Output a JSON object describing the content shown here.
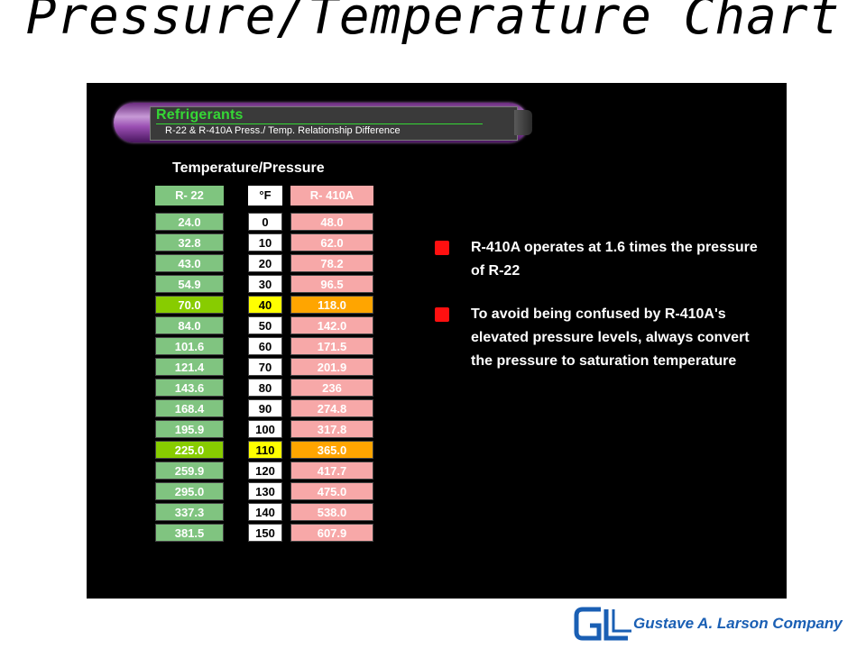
{
  "slide": {
    "title": "Pressure/Temperature Chart"
  },
  "banner": {
    "title": "Refrigerants",
    "subtitle": "R-22 & R-410A Press./ Temp. Relationship Difference"
  },
  "table": {
    "heading": "Temperature/Pressure",
    "headers": {
      "r22": "R- 22",
      "f": "°F",
      "r410a": "R- 410A"
    },
    "rows": [
      {
        "r22": "24.0",
        "f": "0",
        "r410a": "48.0",
        "highlight": false
      },
      {
        "r22": "32.8",
        "f": "10",
        "r410a": "62.0",
        "highlight": false
      },
      {
        "r22": "43.0",
        "f": "20",
        "r410a": "78.2",
        "highlight": false
      },
      {
        "r22": "54.9",
        "f": "30",
        "r410a": "96.5",
        "highlight": false
      },
      {
        "r22": "70.0",
        "f": "40",
        "r410a": "118.0",
        "highlight": true
      },
      {
        "r22": "84.0",
        "f": "50",
        "r410a": "142.0",
        "highlight": false
      },
      {
        "r22": "101.6",
        "f": "60",
        "r410a": "171.5",
        "highlight": false
      },
      {
        "r22": "121.4",
        "f": "70",
        "r410a": "201.9",
        "highlight": false
      },
      {
        "r22": "143.6",
        "f": "80",
        "r410a": "236",
        "highlight": false
      },
      {
        "r22": "168.4",
        "f": "90",
        "r410a": "274.8",
        "highlight": false
      },
      {
        "r22": "195.9",
        "f": "100",
        "r410a": "317.8",
        "highlight": false
      },
      {
        "r22": "225.0",
        "f": "110",
        "r410a": "365.0",
        "highlight": true
      },
      {
        "r22": "259.9",
        "f": "120",
        "r410a": "417.7",
        "highlight": false
      },
      {
        "r22": "295.0",
        "f": "130",
        "r410a": "475.0",
        "highlight": false
      },
      {
        "r22": "337.3",
        "f": "140",
        "r410a": "538.0",
        "highlight": false
      },
      {
        "r22": "381.5",
        "f": "150",
        "r410a": "607.9",
        "highlight": false
      }
    ]
  },
  "notes": [
    "R-410A operates at 1.6 times the pressure of R-22",
    "To avoid being confused by R-410A's elevated pressure levels, always convert the pressure to saturation temperature"
  ],
  "logo": {
    "text": "Gustave A. Larson Company",
    "mark": "GL"
  },
  "colors": {
    "panel": "#000000",
    "r22": "#80c480",
    "r22_highlight": "#88cc00",
    "f_highlight": "#ffff00",
    "r410a": "#f7a8a8",
    "r410a_highlight": "#ffa500",
    "bullet": "#ff1010",
    "banner_title": "#35d735",
    "logo": "#1a5fb4"
  }
}
